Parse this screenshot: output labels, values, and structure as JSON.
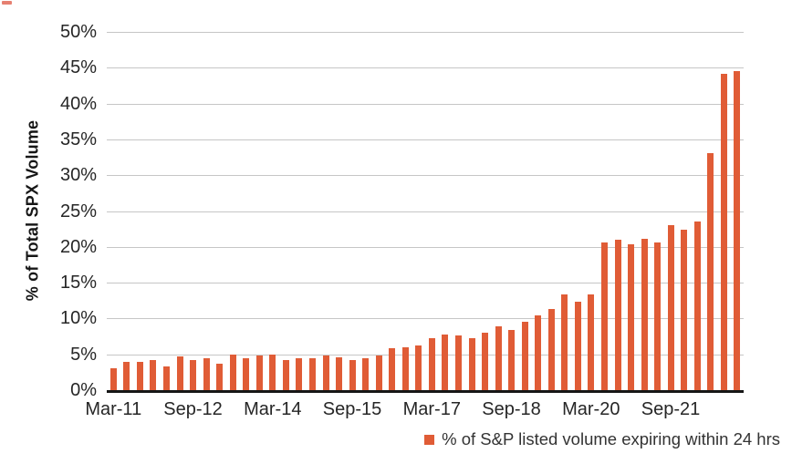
{
  "colors": {
    "accent": "#E05C36",
    "axis": "#161616",
    "grid": "#c6c6c6",
    "text": "#262626",
    "corner_mark": "#e0604d"
  },
  "chart_data": {
    "type": "bar",
    "title": "",
    "xlabel": "",
    "ylabel": "% of Total SPX Volume",
    "ylim": [
      0,
      50
    ],
    "y_tick_step": 5,
    "y_ticks": [
      {
        "value": 0,
        "label": "0%"
      },
      {
        "value": 5,
        "label": "5%"
      },
      {
        "value": 10,
        "label": "10%"
      },
      {
        "value": 15,
        "label": "15%"
      },
      {
        "value": 20,
        "label": "20%"
      },
      {
        "value": 25,
        "label": "25%"
      },
      {
        "value": 30,
        "label": "30%"
      },
      {
        "value": 35,
        "label": "35%"
      },
      {
        "value": 40,
        "label": "40%"
      },
      {
        "value": 45,
        "label": "45%"
      },
      {
        "value": 50,
        "label": "50%"
      }
    ],
    "grid": "horizontal",
    "categories": [
      "Mar-11",
      "Jun-11",
      "Sep-11",
      "Dec-11",
      "Mar-12",
      "Jun-12",
      "Sep-12",
      "Dec-12",
      "Mar-13",
      "Jun-13",
      "Sep-13",
      "Dec-13",
      "Mar-14",
      "Jun-14",
      "Sep-14",
      "Dec-14",
      "Mar-15",
      "Jun-15",
      "Sep-15",
      "Dec-15",
      "Mar-16",
      "Jun-16",
      "Sep-16",
      "Dec-16",
      "Mar-17",
      "Jun-17",
      "Sep-17",
      "Dec-17",
      "Mar-18",
      "Jun-18",
      "Sep-18",
      "Dec-18",
      "Mar-19",
      "Jun-19",
      "Sep-19",
      "Dec-19",
      "Mar-20",
      "Jun-20",
      "Sep-20",
      "Dec-20",
      "Mar-21",
      "Jun-21",
      "Sep-21",
      "Dec-21",
      "Mar-22",
      "Jun-22",
      "Sep-22",
      "Dec-22"
    ],
    "values": [
      3.0,
      3.9,
      4.0,
      4.2,
      3.3,
      4.7,
      4.2,
      4.5,
      3.7,
      5.0,
      4.4,
      4.8,
      5.0,
      4.2,
      4.4,
      4.4,
      4.8,
      4.6,
      4.2,
      4.4,
      4.8,
      5.9,
      6.0,
      6.2,
      7.2,
      7.8,
      7.6,
      7.2,
      8.0,
      8.9,
      8.4,
      9.6,
      10.4,
      11.3,
      13.3,
      12.3,
      13.4,
      20.6,
      21.0,
      20.3,
      21.1,
      20.6,
      23.0,
      22.4,
      23.6,
      33.1,
      44.1,
      44.5
    ],
    "x_ticks": [
      {
        "index": 0,
        "label": "Mar-11"
      },
      {
        "index": 6,
        "label": "Sep-12"
      },
      {
        "index": 12,
        "label": "Mar-14"
      },
      {
        "index": 18,
        "label": "Sep-15"
      },
      {
        "index": 24,
        "label": "Mar-17"
      },
      {
        "index": 30,
        "label": "Sep-18"
      },
      {
        "index": 36,
        "label": "Mar-20"
      },
      {
        "index": 42,
        "label": "Sep-21"
      }
    ],
    "legend_position": "bottom-right",
    "legend": [
      {
        "label": "% of S&P listed volume expiring within 24 hrs",
        "color": "#E05C36"
      }
    ]
  }
}
